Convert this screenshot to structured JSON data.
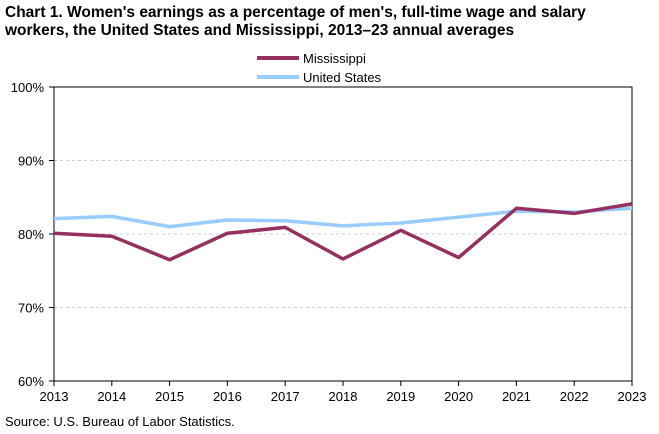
{
  "title_line1": "Chart 1. Women's earnings as a percentage of men's, full-time wage and salary",
  "title_line2": "workers, the United States and Mississippi,  2013–23 annual averages",
  "source": "Source: U.S. Bureau of Labor Statistics.",
  "chart_data": {
    "type": "line",
    "title": "Chart 1. Women's earnings as a percentage of men's, full-time wage and salary workers, the United States and Mississippi,  2013–23 annual averages",
    "x": [
      "2013",
      "2014",
      "2015",
      "2016",
      "2017",
      "2018",
      "2019",
      "2020",
      "2021",
      "2022",
      "2023"
    ],
    "ylim": [
      60,
      100
    ],
    "yticks": [
      60,
      70,
      80,
      90,
      100
    ],
    "ytick_labels": [
      "60%",
      "70%",
      "80%",
      "90%",
      "100%"
    ],
    "grid": "horizontal dashed",
    "legend_placement": "top-center",
    "series": [
      {
        "name": "Mississippi",
        "color": "#953160",
        "values": [
          80.1,
          79.7,
          76.5,
          80.1,
          80.9,
          76.6,
          80.5,
          76.8,
          83.5,
          82.8,
          84.1
        ]
      },
      {
        "name": "United States",
        "color": "#99ccff",
        "values": [
          82.1,
          82.4,
          81.0,
          81.9,
          81.8,
          81.1,
          81.5,
          82.3,
          83.1,
          83.0,
          83.5
        ]
      }
    ]
  }
}
